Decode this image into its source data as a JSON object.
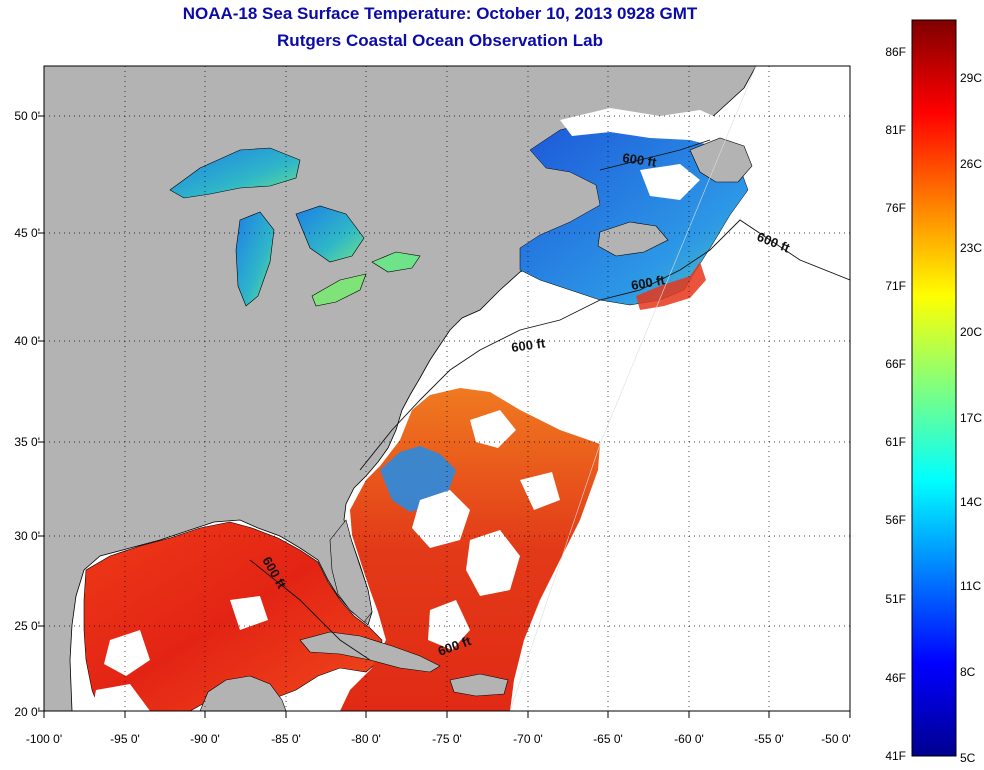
{
  "title": "NOAA-18 Sea Surface Temperature:  October 10, 2013 0928 GMT",
  "subtitle": "Rutgers Coastal Ocean Observation Lab",
  "lat_ticks": [
    "50 0'",
    "45 0'",
    "40 0'",
    "35 0'",
    "30 0'",
    "25 0'",
    "20 0'"
  ],
  "lon_ticks": [
    "-100 0'",
    "-95 0'",
    "-90 0'",
    "-85 0'",
    "-80 0'",
    "-75 0'",
    "-70 0'",
    "-65 0'",
    "-60 0'",
    "-55 0'",
    "-50 0'"
  ],
  "colorbar": {
    "f_labels": [
      "86F",
      "81F",
      "76F",
      "71F",
      "66F",
      "61F",
      "56F",
      "51F",
      "46F",
      "41F"
    ],
    "c_labels": [
      "29C",
      "26C",
      "23C",
      "20C",
      "17C",
      "14C",
      "11C",
      "8C",
      "5C"
    ],
    "colors": [
      "#7f0000",
      "#ff0000",
      "#ff7f00",
      "#ffff00",
      "#7fff7f",
      "#00ffff",
      "#007fff",
      "#0000ff",
      "#00008f"
    ]
  },
  "contour_labels": [
    "600 ft",
    "600 ft",
    "600 ft",
    "600 ft",
    "600 ft",
    "600 ft"
  ],
  "colors": {
    "title": "#0b0ba8",
    "land": "#b3b3b3",
    "no_data": "#ffffff",
    "warm_water": "#e8361a",
    "cool_water": "#2a7de0",
    "coast": "#000000"
  }
}
